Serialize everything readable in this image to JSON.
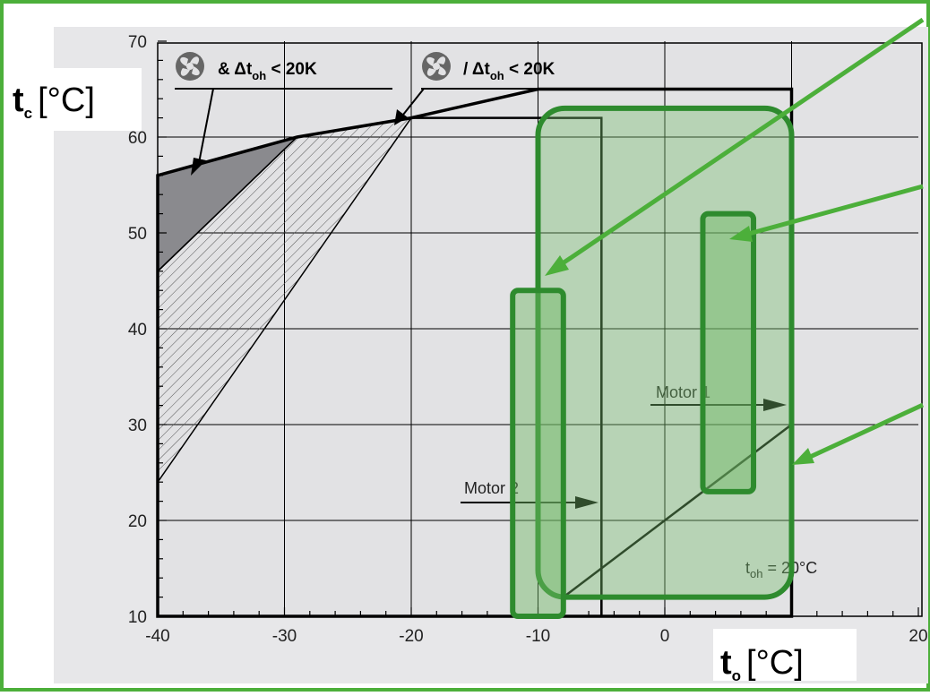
{
  "chart_data": {
    "type": "area",
    "xlabel": "t",
    "xlabel_sub": "o",
    "xunit": "[°C]",
    "ylabel": "t",
    "ylabel_sub": "c",
    "yunit": "[°C]",
    "xlim": [
      -40,
      20
    ],
    "ylim": [
      10,
      70
    ],
    "xticks": [
      -40,
      -30,
      -20,
      -10,
      0,
      20
    ],
    "yticks": [
      10,
      20,
      30,
      40,
      50,
      60,
      70
    ],
    "grid": true,
    "series": [
      {
        "name": "Motor 1",
        "points": [
          [
            -40,
            10
          ],
          [
            -40,
            56
          ],
          [
            -29,
            60
          ],
          [
            -20,
            62
          ],
          [
            -10,
            65
          ],
          [
            10,
            65
          ],
          [
            10,
            10
          ]
        ]
      },
      {
        "name": "Motor 2",
        "points": [
          [
            -40,
            10
          ],
          [
            -40,
            56
          ],
          [
            -29,
            60
          ],
          [
            -20,
            62
          ],
          [
            -5,
            62
          ],
          [
            -5,
            60
          ],
          [
            -5,
            10
          ]
        ]
      }
    ],
    "regions": [
      {
        "name": "fan_and_toh",
        "fill": "#8a8a8e",
        "points": [
          [
            -40,
            56
          ],
          [
            -29,
            60
          ],
          [
            -40,
            46
          ]
        ]
      },
      {
        "name": "fan_or_toh",
        "pattern": "hatch",
        "points": [
          [
            -40,
            46
          ],
          [
            -29,
            60
          ],
          [
            -20,
            62
          ],
          [
            -40,
            24
          ]
        ]
      }
    ],
    "lines": [
      {
        "name": "toh_20",
        "points": [
          [
            -8,
            12
          ],
          [
            10,
            30
          ]
        ]
      },
      {
        "name": "vertical_minus5",
        "points": [
          [
            -5,
            10
          ],
          [
            -5,
            60
          ]
        ]
      }
    ],
    "labels": {
      "legend1_prefix": "& Δt",
      "legend1_sub": "oh",
      "legend1_suffix": " < 20K",
      "legend2_prefix": "/ Δt",
      "legend2_sub": "oh",
      "legend2_suffix": " < 20K",
      "motor1": "Motor 1",
      "motor2": "Motor 2",
      "toh_prefix": "t",
      "toh_sub": "oh",
      "toh_suffix": " = 20°C"
    },
    "highlights": [
      {
        "name": "big-highlight",
        "x": [
          -10,
          10
        ],
        "y": [
          12,
          63
        ]
      },
      {
        "name": "left-highlight",
        "x": [
          -12,
          -8
        ],
        "y": [
          10,
          44
        ]
      },
      {
        "name": "right-highlight",
        "x": [
          3,
          7
        ],
        "y": [
          23,
          52
        ]
      }
    ]
  }
}
